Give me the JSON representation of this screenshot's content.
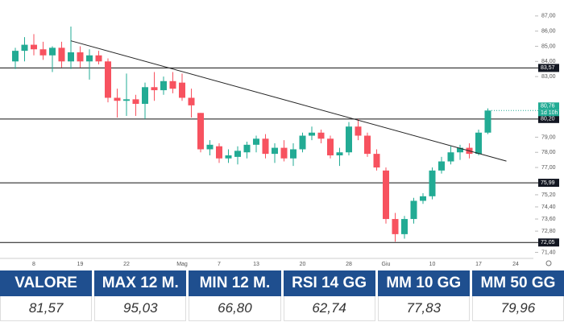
{
  "chart_data": {
    "type": "candlestick",
    "categories": [
      null,
      null,
      "8",
      null,
      null,
      null,
      null,
      "19",
      null,
      null,
      null,
      null,
      "22",
      null,
      null,
      null,
      null,
      null,
      "Mag",
      null,
      null,
      null,
      "7",
      null,
      null,
      null,
      "13",
      null,
      null,
      null,
      null,
      "20",
      null,
      null,
      null,
      null,
      "28",
      null,
      null,
      null,
      "Giu",
      null,
      null,
      null,
      null,
      "10",
      null,
      null,
      null,
      null,
      "17",
      null,
      null,
      null,
      "24"
    ],
    "open": [
      84.0,
      84.7,
      85.1,
      84.8,
      84.4,
      84.9,
      84.0,
      84.6,
      84.0,
      84.4,
      84.0,
      81.6,
      81.4,
      81.5,
      81.2,
      82.3,
      82.1,
      82.7,
      82.6,
      81.6,
      80.6,
      78.2,
      78.4,
      77.6,
      77.7,
      78.0,
      78.5,
      78.9,
      77.9,
      78.3,
      77.6,
      78.2,
      79.1,
      79.3,
      78.9,
      77.8,
      78.0,
      79.7,
      79.1,
      77.9,
      76.8,
      73.6,
      72.6,
      73.6,
      74.8,
      75.1,
      76.8,
      77.4,
      78.0,
      78.3,
      77.9,
      79.3,
      null,
      null,
      null
    ],
    "high": [
      84.9,
      85.6,
      85.8,
      85.3,
      85.0,
      85.3,
      86.3,
      85.0,
      84.8,
      84.7,
      84.2,
      82.2,
      83.2,
      81.8,
      82.6,
      83.3,
      83.0,
      83.3,
      83.2,
      82.2,
      80.6,
      78.8,
      78.6,
      78.2,
      78.4,
      78.7,
      79.1,
      79.2,
      78.6,
      78.8,
      78.6,
      79.3,
      79.7,
      79.5,
      79.1,
      78.3,
      80.0,
      80.2,
      79.3,
      78.2,
      77.0,
      74.0,
      73.8,
      75.0,
      75.3,
      77.0,
      77.7,
      78.4,
      78.5,
      78.6,
      79.5,
      80.9,
      null,
      null,
      null
    ],
    "low": [
      83.5,
      84.0,
      84.4,
      84.1,
      83.3,
      83.6,
      83.5,
      83.6,
      82.8,
      83.8,
      81.3,
      80.3,
      80.4,
      80.4,
      80.2,
      81.4,
      81.8,
      81.9,
      81.4,
      80.3,
      78.0,
      77.8,
      77.3,
      77.3,
      77.2,
      77.6,
      78.0,
      77.6,
      77.3,
      77.4,
      77.1,
      78.0,
      78.8,
      78.6,
      77.6,
      77.1,
      77.8,
      78.8,
      77.7,
      76.8,
      73.3,
      72.1,
      72.3,
      73.3,
      74.6,
      74.9,
      76.6,
      77.2,
      77.5,
      77.6,
      77.8,
      79.2,
      null,
      null,
      null
    ],
    "close": [
      84.7,
      85.1,
      84.8,
      84.4,
      84.9,
      84.0,
      84.6,
      84.0,
      84.4,
      84.0,
      81.6,
      81.4,
      81.5,
      81.2,
      82.3,
      82.1,
      82.7,
      82.2,
      81.6,
      81.1,
      78.2,
      78.5,
      77.6,
      77.8,
      78.1,
      78.5,
      78.9,
      77.9,
      78.3,
      77.6,
      78.2,
      79.1,
      79.3,
      78.9,
      77.8,
      78.0,
      79.7,
      79.1,
      77.9,
      77.0,
      73.6,
      72.6,
      73.6,
      74.8,
      75.1,
      76.8,
      77.4,
      78.0,
      78.3,
      77.9,
      79.3,
      80.76,
      null,
      null,
      null
    ],
    "up_color": "#22ab94",
    "down_color": "#f7525f",
    "ylim": [
      71,
      88
    ],
    "yticks": [
      {
        "value": 87,
        "label": "87,00"
      },
      {
        "value": 86,
        "label": "86,00"
      },
      {
        "value": 85,
        "label": "85,00"
      },
      {
        "value": 84,
        "label": "84,00"
      },
      {
        "value": 83,
        "label": "83,00"
      },
      {
        "value": 79,
        "label": "79,00"
      },
      {
        "value": 78,
        "label": "78,00"
      },
      {
        "value": 77,
        "label": "77,00"
      },
      {
        "value": 75.2,
        "label": "75,20"
      },
      {
        "value": 74.4,
        "label": "74,40"
      },
      {
        "value": 73.6,
        "label": "73,60"
      },
      {
        "value": 72.8,
        "label": "72,80"
      },
      {
        "value": 71.4,
        "label": "71,40"
      }
    ],
    "grid": false,
    "levels": [
      {
        "value": 83.57,
        "label": "83,57"
      },
      {
        "value": 80.2,
        "label": "80,20"
      },
      {
        "value": 75.99,
        "label": "75,99"
      },
      {
        "value": 72.05,
        "label": "72,05"
      }
    ],
    "trendline": {
      "x": [
        6,
        53
      ],
      "y": [
        85.36,
        77.42
      ]
    },
    "last_price": {
      "value": 80.76,
      "label": "80,76"
    },
    "countdown": "1d 10h"
  },
  "table": {
    "header": [
      "VALORE",
      "MAX 12 M.",
      "MIN 12 M.",
      "RSI 14 GG",
      "MM 10 GG",
      "MM 50 GG"
    ],
    "rows": [
      [
        "81,57",
        "95,03",
        "66,80",
        "62,74",
        "77,83",
        "79,96"
      ]
    ]
  }
}
